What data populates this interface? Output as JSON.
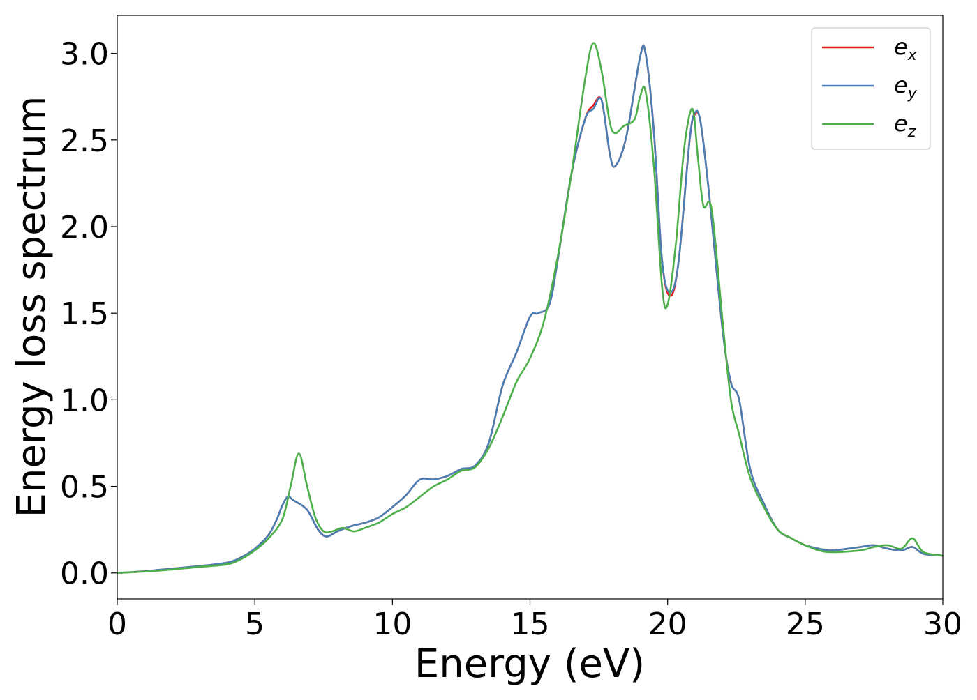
{
  "chart_data": {
    "type": "line",
    "xlabel": "Energy (eV)",
    "ylabel": "Energy loss spectrum",
    "xlim": [
      0,
      30
    ],
    "ylim": [
      -0.15,
      3.22
    ],
    "xticks": [
      0,
      5,
      10,
      15,
      20,
      25,
      30
    ],
    "xtick_labels": [
      "0",
      "5",
      "10",
      "15",
      "20",
      "25",
      "30"
    ],
    "yticks": [
      0.0,
      0.5,
      1.0,
      1.5,
      2.0,
      2.5,
      3.0
    ],
    "ytick_labels": [
      "0.0",
      "0.5",
      "1.0",
      "1.5",
      "2.0",
      "2.5",
      "3.0"
    ],
    "grid": false,
    "legend_position": "top-right",
    "series": [
      {
        "name": "e_x",
        "legend_base": "e",
        "legend_sub": "x",
        "color": "#e41a1c",
        "x": [
          0,
          1,
          2,
          3,
          4,
          4.5,
          5,
          5.5,
          5.8,
          6.0,
          6.2,
          6.4,
          6.8,
          7.0,
          7.3,
          7.6,
          8.0,
          8.5,
          9.0,
          9.5,
          10.0,
          10.5,
          11.0,
          11.5,
          12.0,
          12.5,
          13.0,
          13.5,
          14.0,
          14.5,
          15.0,
          15.3,
          15.7,
          16.0,
          16.5,
          17.0,
          17.3,
          17.6,
          17.9,
          18.1,
          18.5,
          19.0,
          19.2,
          19.5,
          19.8,
          20.1,
          20.4,
          20.8,
          21.0,
          21.2,
          21.5,
          22.0,
          22.3,
          22.6,
          23.0,
          23.5,
          24.0,
          24.5,
          25.0,
          25.5,
          26.0,
          27.0,
          27.5,
          28.0,
          28.5,
          28.9,
          29.3,
          30.0
        ],
        "y": [
          0.0,
          0.01,
          0.025,
          0.04,
          0.06,
          0.09,
          0.14,
          0.22,
          0.31,
          0.39,
          0.44,
          0.42,
          0.38,
          0.34,
          0.25,
          0.21,
          0.24,
          0.27,
          0.29,
          0.32,
          0.38,
          0.45,
          0.54,
          0.54,
          0.56,
          0.6,
          0.62,
          0.75,
          1.08,
          1.27,
          1.48,
          1.5,
          1.55,
          1.8,
          2.3,
          2.62,
          2.7,
          2.73,
          2.42,
          2.35,
          2.52,
          2.98,
          3.0,
          2.55,
          1.8,
          1.6,
          1.8,
          2.5,
          2.65,
          2.6,
          2.2,
          1.4,
          1.1,
          1.0,
          0.6,
          0.4,
          0.25,
          0.2,
          0.16,
          0.14,
          0.13,
          0.15,
          0.16,
          0.14,
          0.13,
          0.15,
          0.11,
          0.1
        ]
      },
      {
        "name": "e_y",
        "legend_base": "e",
        "legend_sub": "y",
        "color": "#4a7fb5",
        "x": [
          0,
          1,
          2,
          3,
          4,
          4.5,
          5,
          5.5,
          5.8,
          6.0,
          6.2,
          6.4,
          6.8,
          7.0,
          7.3,
          7.6,
          8.0,
          8.5,
          9.0,
          9.5,
          10.0,
          10.5,
          11.0,
          11.5,
          12.0,
          12.5,
          13.0,
          13.5,
          14.0,
          14.5,
          15.0,
          15.3,
          15.7,
          16.0,
          16.5,
          17.0,
          17.3,
          17.6,
          17.9,
          18.1,
          18.5,
          19.0,
          19.2,
          19.5,
          19.8,
          20.1,
          20.4,
          20.8,
          21.0,
          21.2,
          21.5,
          22.0,
          22.3,
          22.6,
          23.0,
          23.5,
          24.0,
          24.5,
          25.0,
          25.5,
          26.0,
          27.0,
          27.5,
          28.0,
          28.5,
          28.9,
          29.3,
          30.0
        ],
        "y": [
          0.0,
          0.01,
          0.025,
          0.04,
          0.06,
          0.09,
          0.14,
          0.22,
          0.31,
          0.39,
          0.44,
          0.42,
          0.38,
          0.34,
          0.25,
          0.21,
          0.24,
          0.27,
          0.29,
          0.32,
          0.38,
          0.45,
          0.54,
          0.54,
          0.56,
          0.6,
          0.62,
          0.75,
          1.08,
          1.27,
          1.48,
          1.5,
          1.55,
          1.8,
          2.3,
          2.62,
          2.68,
          2.73,
          2.42,
          2.35,
          2.52,
          2.98,
          3.0,
          2.55,
          1.8,
          1.62,
          1.8,
          2.5,
          2.66,
          2.6,
          2.2,
          1.4,
          1.1,
          1.0,
          0.6,
          0.4,
          0.25,
          0.2,
          0.16,
          0.14,
          0.13,
          0.15,
          0.16,
          0.14,
          0.13,
          0.15,
          0.11,
          0.1
        ]
      },
      {
        "name": "e_z",
        "legend_base": "e",
        "legend_sub": "z",
        "color": "#4daf4a",
        "x": [
          0,
          1,
          2,
          3,
          4,
          4.5,
          5,
          5.5,
          6.0,
          6.3,
          6.6,
          6.9,
          7.2,
          7.5,
          7.8,
          8.2,
          8.6,
          9.0,
          9.5,
          10.0,
          10.5,
          11.0,
          11.5,
          12.0,
          12.5,
          13.0,
          13.5,
          14.0,
          14.5,
          15.0,
          15.5,
          16.0,
          16.5,
          17.0,
          17.3,
          17.6,
          17.9,
          18.1,
          18.4,
          18.8,
          19.0,
          19.2,
          19.5,
          19.8,
          20.0,
          20.3,
          20.6,
          20.9,
          21.1,
          21.3,
          21.6,
          22.0,
          22.3,
          22.6,
          23.0,
          23.5,
          24.0,
          24.5,
          25.0,
          25.5,
          26.0,
          27.0,
          27.5,
          28.0,
          28.5,
          28.9,
          29.3,
          30.0
        ],
        "y": [
          0.0,
          0.008,
          0.02,
          0.035,
          0.05,
          0.08,
          0.13,
          0.2,
          0.31,
          0.5,
          0.69,
          0.5,
          0.32,
          0.24,
          0.24,
          0.26,
          0.24,
          0.26,
          0.29,
          0.34,
          0.38,
          0.44,
          0.5,
          0.54,
          0.59,
          0.61,
          0.72,
          0.9,
          1.1,
          1.24,
          1.45,
          1.82,
          2.3,
          2.85,
          3.06,
          2.9,
          2.6,
          2.54,
          2.58,
          2.62,
          2.75,
          2.78,
          2.35,
          1.65,
          1.55,
          1.9,
          2.45,
          2.68,
          2.4,
          2.12,
          2.1,
          1.45,
          1.0,
          0.8,
          0.55,
          0.38,
          0.25,
          0.2,
          0.16,
          0.13,
          0.12,
          0.13,
          0.15,
          0.16,
          0.14,
          0.2,
          0.12,
          0.1
        ]
      }
    ]
  }
}
